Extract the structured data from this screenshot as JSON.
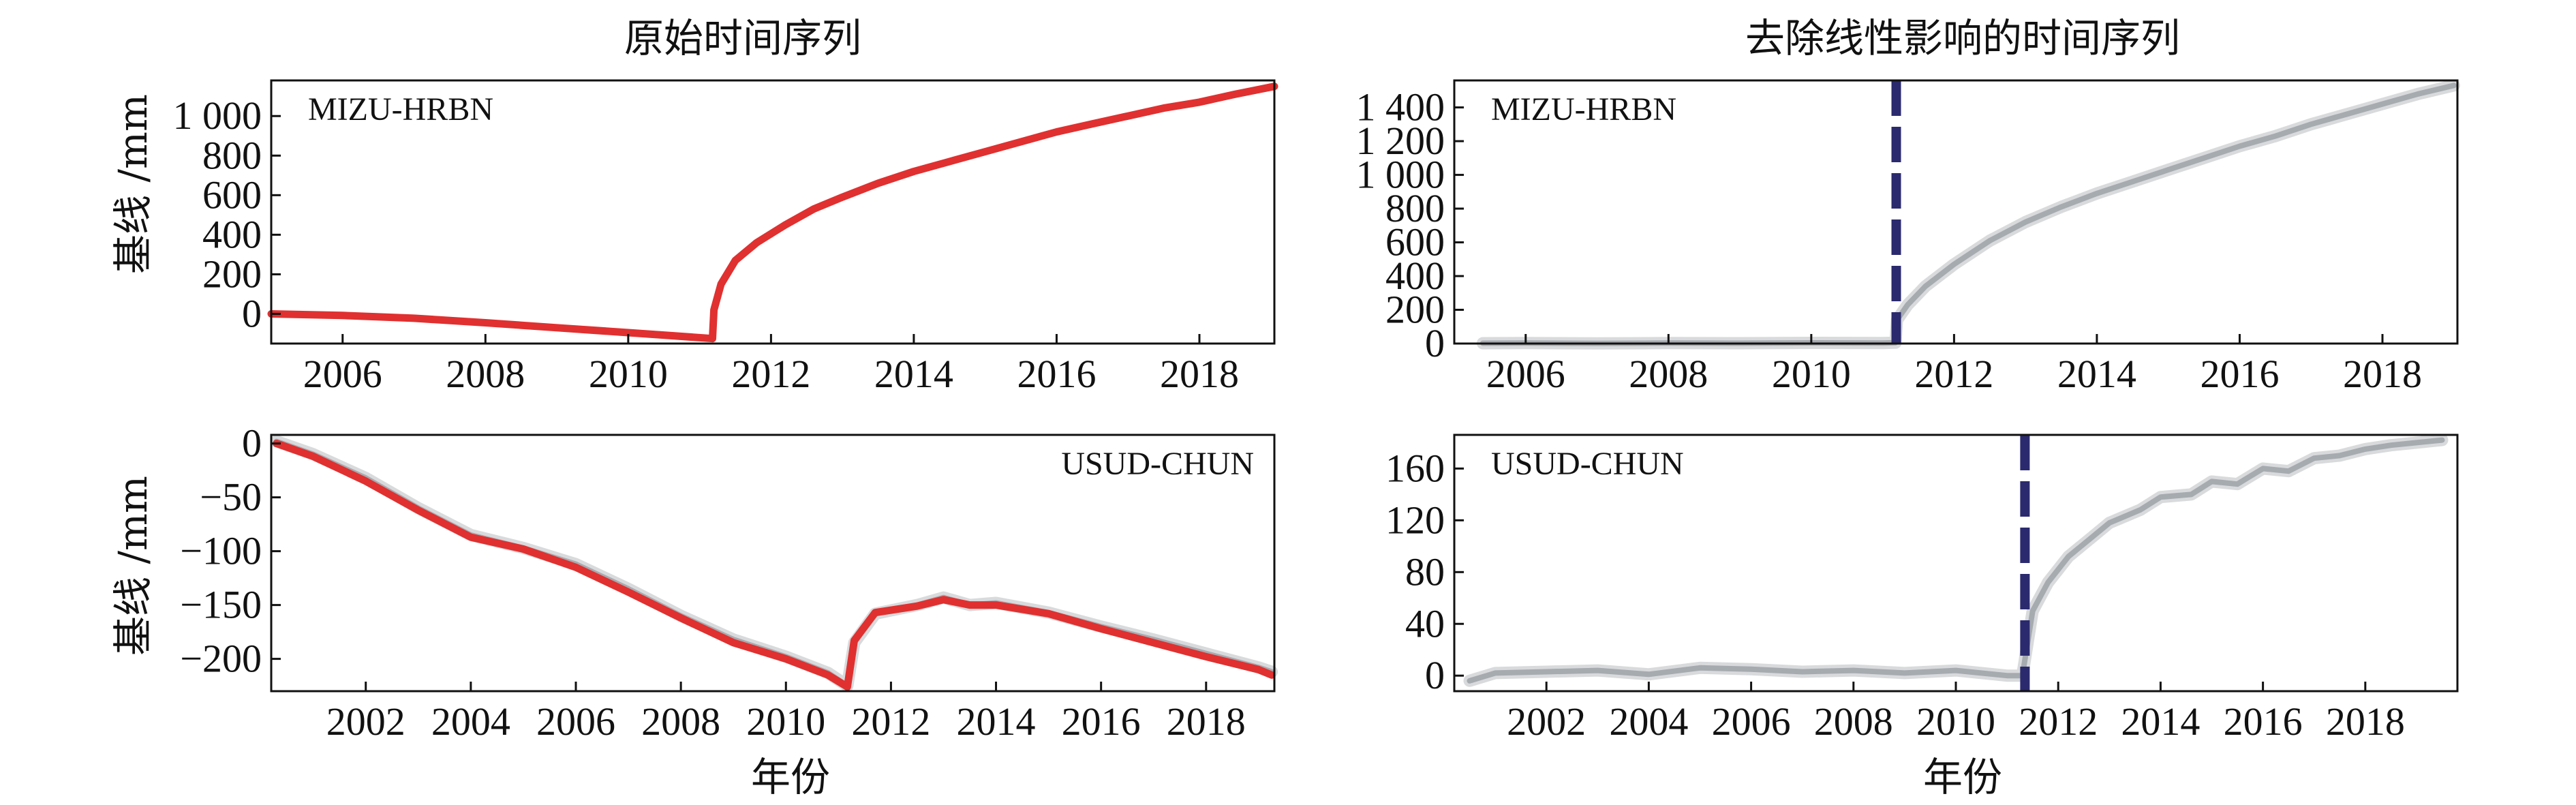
{
  "titles": {
    "left": "原始时间序列",
    "right": "去除线性影响的时间序列"
  },
  "xlabel": "年份",
  "ylabel": "基线 /mm",
  "colors": {
    "red": "#e03030",
    "gray": "#b8bcc0",
    "gray_dark": "#a6abb0",
    "navy": "#2b2a6e"
  },
  "chart_data": [
    {
      "id": "top-left",
      "type": "line",
      "station": "MIZU-HRBN",
      "xlim": [
        2005.0,
        2019.05
      ],
      "ylim": [
        -150,
        1180
      ],
      "xticks": [
        2006,
        2008,
        2010,
        2012,
        2014,
        2016,
        2018
      ],
      "xtick_labels": [
        "2006",
        "2008",
        "2010",
        "2012",
        "2014",
        "2016",
        "2018"
      ],
      "yticks": [
        0,
        200,
        400,
        600,
        800,
        1000
      ],
      "ytick_labels": [
        "0",
        "200",
        "400",
        "600",
        "800",
        "1 000"
      ],
      "series": [
        {
          "color": "red",
          "x": [
            2005.0,
            2006.0,
            2007.0,
            2008.0,
            2009.0,
            2010.0,
            2010.6,
            2011.18,
            2011.2,
            2011.3,
            2011.5,
            2011.8,
            2012.2,
            2012.6,
            2013.0,
            2013.5,
            2014.0,
            2014.5,
            2015.0,
            2015.5,
            2016.0,
            2016.5,
            2017.0,
            2017.5,
            2018.0,
            2018.5,
            2019.05
          ],
          "y": [
            0,
            -8,
            -22,
            -45,
            -70,
            -95,
            -110,
            -125,
            20,
            150,
            270,
            360,
            450,
            530,
            590,
            660,
            720,
            770,
            820,
            870,
            920,
            960,
            1000,
            1040,
            1070,
            1110,
            1150
          ]
        }
      ]
    },
    {
      "id": "top-right",
      "type": "line",
      "station": "MIZU-HRBN",
      "xlim": [
        2005.0,
        2019.05
      ],
      "ylim": [
        0,
        1560
      ],
      "xticks": [
        2006,
        2008,
        2010,
        2012,
        2014,
        2016,
        2018
      ],
      "xtick_labels": [
        "2006",
        "2008",
        "2010",
        "2012",
        "2014",
        "2016",
        "2018"
      ],
      "yticks": [
        0,
        200,
        400,
        600,
        800,
        1000,
        1200,
        1400
      ],
      "ytick_labels": [
        "0",
        "200",
        "400",
        "600",
        "800",
        "1 000",
        "1 200",
        "1 400"
      ],
      "vline": 2011.19,
      "series": [
        {
          "color": "gray",
          "x": [
            2005.4,
            2006.0,
            2007.0,
            2008.0,
            2009.0,
            2010.0,
            2011.0,
            2011.18,
            2011.2,
            2011.35,
            2011.6,
            2012.0,
            2012.5,
            2013.0,
            2013.5,
            2014.0,
            2014.5,
            2015.0,
            2015.5,
            2016.0,
            2016.5,
            2017.0,
            2017.5,
            2018.0,
            2018.5,
            2019.0
          ],
          "y": [
            2,
            3,
            1,
            3,
            2,
            4,
            3,
            5,
            140,
            230,
            340,
            470,
            610,
            720,
            810,
            890,
            960,
            1030,
            1100,
            1170,
            1230,
            1300,
            1360,
            1420,
            1480,
            1530
          ]
        }
      ]
    },
    {
      "id": "bottom-left",
      "type": "line",
      "station": "USUD-CHUN",
      "xlim": [
        2000.2,
        2019.3
      ],
      "ylim": [
        -230,
        8
      ],
      "xticks": [
        2002,
        2004,
        2006,
        2008,
        2010,
        2012,
        2014,
        2016,
        2018
      ],
      "xtick_labels": [
        "2002",
        "2004",
        "2006",
        "2008",
        "2010",
        "2012",
        "2014",
        "2016",
        "2018"
      ],
      "yticks": [
        0,
        -50,
        -100,
        -150,
        -200
      ],
      "ytick_labels": [
        "0",
        "−50",
        "−100",
        "−150",
        "−200"
      ],
      "series": [
        {
          "color": "gray",
          "x": [
            2000.3,
            2001.0,
            2002.0,
            2003.0,
            2004.0,
            2005.0,
            2006.0,
            2007.0,
            2008.0,
            2009.0,
            2010.0,
            2010.8,
            2011.17,
            2011.3,
            2011.7,
            2012.5,
            2013.0,
            2013.5,
            2014.0,
            2015.0,
            2016.0,
            2017.0,
            2018.0,
            2019.0,
            2019.25
          ],
          "y": [
            2,
            -10,
            -32,
            -60,
            -85,
            -97,
            -112,
            -135,
            -160,
            -182,
            -198,
            -213,
            -225,
            -185,
            -158,
            -150,
            -143,
            -150,
            -148,
            -157,
            -170,
            -182,
            -195,
            -208,
            -212
          ]
        },
        {
          "color": "red",
          "x": [
            2000.3,
            2001.0,
            2002.0,
            2003.0,
            2004.0,
            2005.0,
            2006.0,
            2007.0,
            2008.0,
            2009.0,
            2010.0,
            2010.8,
            2011.17,
            2011.3,
            2011.7,
            2012.5,
            2013.0,
            2013.5,
            2014.0,
            2015.0,
            2016.0,
            2017.0,
            2018.0,
            2019.0,
            2019.25
          ],
          "y": [
            0,
            -12,
            -35,
            -62,
            -87,
            -98,
            -115,
            -138,
            -162,
            -185,
            -200,
            -215,
            -226,
            -183,
            -157,
            -151,
            -145,
            -150,
            -150,
            -158,
            -172,
            -185,
            -198,
            -210,
            -215
          ]
        }
      ]
    },
    {
      "id": "bottom-right",
      "type": "line",
      "station": "USUD-CHUN",
      "xlim": [
        2000.2,
        2019.8
      ],
      "ylim": [
        -12,
        186
      ],
      "xticks": [
        2002,
        2004,
        2006,
        2008,
        2010,
        2012,
        2014,
        2016,
        2018
      ],
      "xtick_labels": [
        "2002",
        "2004",
        "2006",
        "2008",
        "2010",
        "2012",
        "2014",
        "2016",
        "2018"
      ],
      "yticks": [
        0,
        40,
        80,
        120,
        160
      ],
      "ytick_labels": [
        "0",
        "40",
        "80",
        "120",
        "160"
      ],
      "vline": 2011.35,
      "series": [
        {
          "color": "gray",
          "x": [
            2000.5,
            2001.0,
            2002.0,
            2003.0,
            2004.0,
            2005.0,
            2006.0,
            2007.0,
            2008.0,
            2009.0,
            2010.0,
            2011.0,
            2011.3,
            2011.5,
            2011.8,
            2012.2,
            2012.6,
            2013.0,
            2013.6,
            2014.0,
            2014.6,
            2015.0,
            2015.5,
            2016.0,
            2016.5,
            2017.0,
            2017.5,
            2018.0,
            2018.5,
            2019.0,
            2019.5
          ],
          "y": [
            -4,
            2,
            3,
            4,
            1,
            6,
            5,
            3,
            4,
            2,
            4,
            0,
            0,
            50,
            72,
            92,
            105,
            118,
            128,
            138,
            140,
            150,
            148,
            160,
            158,
            168,
            170,
            175,
            178,
            180,
            182
          ]
        }
      ]
    }
  ]
}
